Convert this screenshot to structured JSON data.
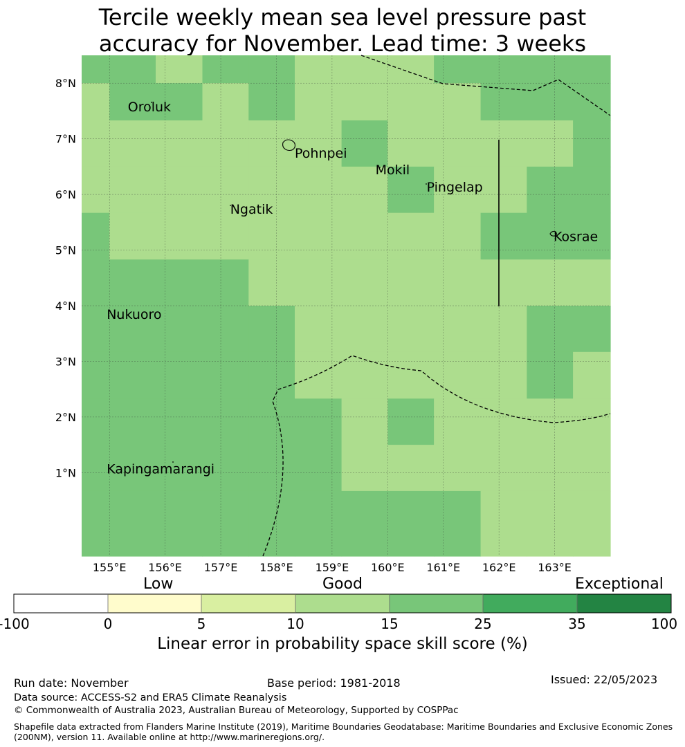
{
  "title": {
    "line1": "Tercile weekly mean sea level pressure past",
    "line2": "accuracy for November. Lead time: 3 weeks"
  },
  "map": {
    "lon_range": [
      154.5,
      164.0
    ],
    "lat_range": [
      -0.5,
      8.5
    ],
    "lon_ticks": [
      {
        "value": 155,
        "label": "155°E"
      },
      {
        "value": 156,
        "label": "156°E"
      },
      {
        "value": 157,
        "label": "157°E"
      },
      {
        "value": 158,
        "label": "158°E"
      },
      {
        "value": 159,
        "label": "159°E"
      },
      {
        "value": 160,
        "label": "160°E"
      },
      {
        "value": 161,
        "label": "161°E"
      },
      {
        "value": 162,
        "label": "162°E"
      },
      {
        "value": 163,
        "label": "163°E"
      }
    ],
    "lat_ticks": [
      {
        "value": 1,
        "label": "1°N"
      },
      {
        "value": 2,
        "label": "2°N"
      },
      {
        "value": 3,
        "label": "3°N"
      },
      {
        "value": 4,
        "label": "4°N"
      },
      {
        "value": 5,
        "label": "5°N"
      },
      {
        "value": 6,
        "label": "6°N"
      },
      {
        "value": 7,
        "label": "7°N"
      },
      {
        "value": 8,
        "label": "8°N"
      }
    ],
    "cell_lon_edges": [
      154.5,
      155.0,
      155.83,
      156.67,
      157.5,
      158.33,
      159.17,
      160.0,
      160.83,
      161.67,
      162.5,
      163.33,
      164.0
    ],
    "cell_lat_edges": [
      8.5,
      8.0,
      7.33,
      6.5,
      5.67,
      4.83,
      4.0,
      3.17,
      2.33,
      1.5,
      0.67,
      -0.5
    ],
    "cell_classes": [
      [
        4,
        4,
        3,
        4,
        4,
        3,
        3,
        3,
        4,
        4,
        4,
        4
      ],
      [
        3,
        4,
        4,
        3,
        4,
        3,
        3,
        3,
        3,
        4,
        4,
        4
      ],
      [
        3,
        3,
        3,
        3,
        3,
        3,
        4,
        3,
        3,
        3,
        3,
        4
      ],
      [
        3,
        3,
        3,
        3,
        3,
        3,
        3,
        4,
        3,
        3,
        4,
        4
      ],
      [
        4,
        3,
        3,
        3,
        3,
        3,
        3,
        3,
        3,
        4,
        4,
        4
      ],
      [
        4,
        4,
        4,
        4,
        3,
        3,
        3,
        3,
        3,
        3,
        3,
        3
      ],
      [
        4,
        4,
        4,
        4,
        4,
        3,
        3,
        3,
        3,
        3,
        4,
        4
      ],
      [
        4,
        4,
        4,
        4,
        4,
        3,
        3,
        3,
        3,
        3,
        4,
        3
      ],
      [
        4,
        4,
        4,
        4,
        4,
        4,
        3,
        4,
        3,
        3,
        3,
        3
      ],
      [
        4,
        4,
        4,
        4,
        4,
        4,
        3,
        3,
        3,
        3,
        3,
        3
      ],
      [
        4,
        4,
        4,
        4,
        4,
        4,
        4,
        4,
        4,
        3,
        3,
        3
      ]
    ],
    "places": [
      {
        "name": "Oroluk",
        "lon": 155.33,
        "lat": 7.58
      },
      {
        "name": "Pohnpei",
        "lon": 158.33,
        "lat": 6.75
      },
      {
        "name": "Mokil",
        "lon": 159.78,
        "lat": 6.45
      },
      {
        "name": "Pingelap",
        "lon": 160.7,
        "lat": 6.14
      },
      {
        "name": "Ngatik",
        "lon": 157.17,
        "lat": 5.74
      },
      {
        "name": "Kosrae",
        "lon": 162.98,
        "lat": 5.25
      },
      {
        "name": "Nukuoro",
        "lon": 154.95,
        "lat": 3.85
      },
      {
        "name": "Kapingamarangi",
        "lon": 154.95,
        "lat": 1.07
      }
    ]
  },
  "colorbar": {
    "colors": [
      "#ffffff",
      "#fffccc",
      "#d9efa1",
      "#addd8e",
      "#78c679",
      "#41ab5d",
      "#238443"
    ],
    "ticks": [
      "-100",
      "0",
      "5",
      "10",
      "15",
      "25",
      "35",
      "100"
    ],
    "categories": {
      "low": "Low",
      "good": "Good",
      "exceptional": "Exceptional"
    },
    "label": "Linear error in probability space skill score (%)"
  },
  "footer": {
    "run_date": "Run date: November",
    "base_period": "Base period: 1981-2018",
    "issued": "Issued: 22/05/2023",
    "data_source": "Data source: ACCESS-S2 and ERA5 Climate Reanalysis",
    "copyright": "© Commonwealth of Australia 2023, Australian Bureau of Meteorology, Supported by COSPPac",
    "shapefile_line1": "Shapefile data extracted from Flanders Marine Institute (2019), Maritime Boundaries Geodatabase: Maritime Boundaries and Exclusive Economic Zones",
    "shapefile_line2": "(200NM), version 11. Available online at http://www.marineregions.org/."
  }
}
